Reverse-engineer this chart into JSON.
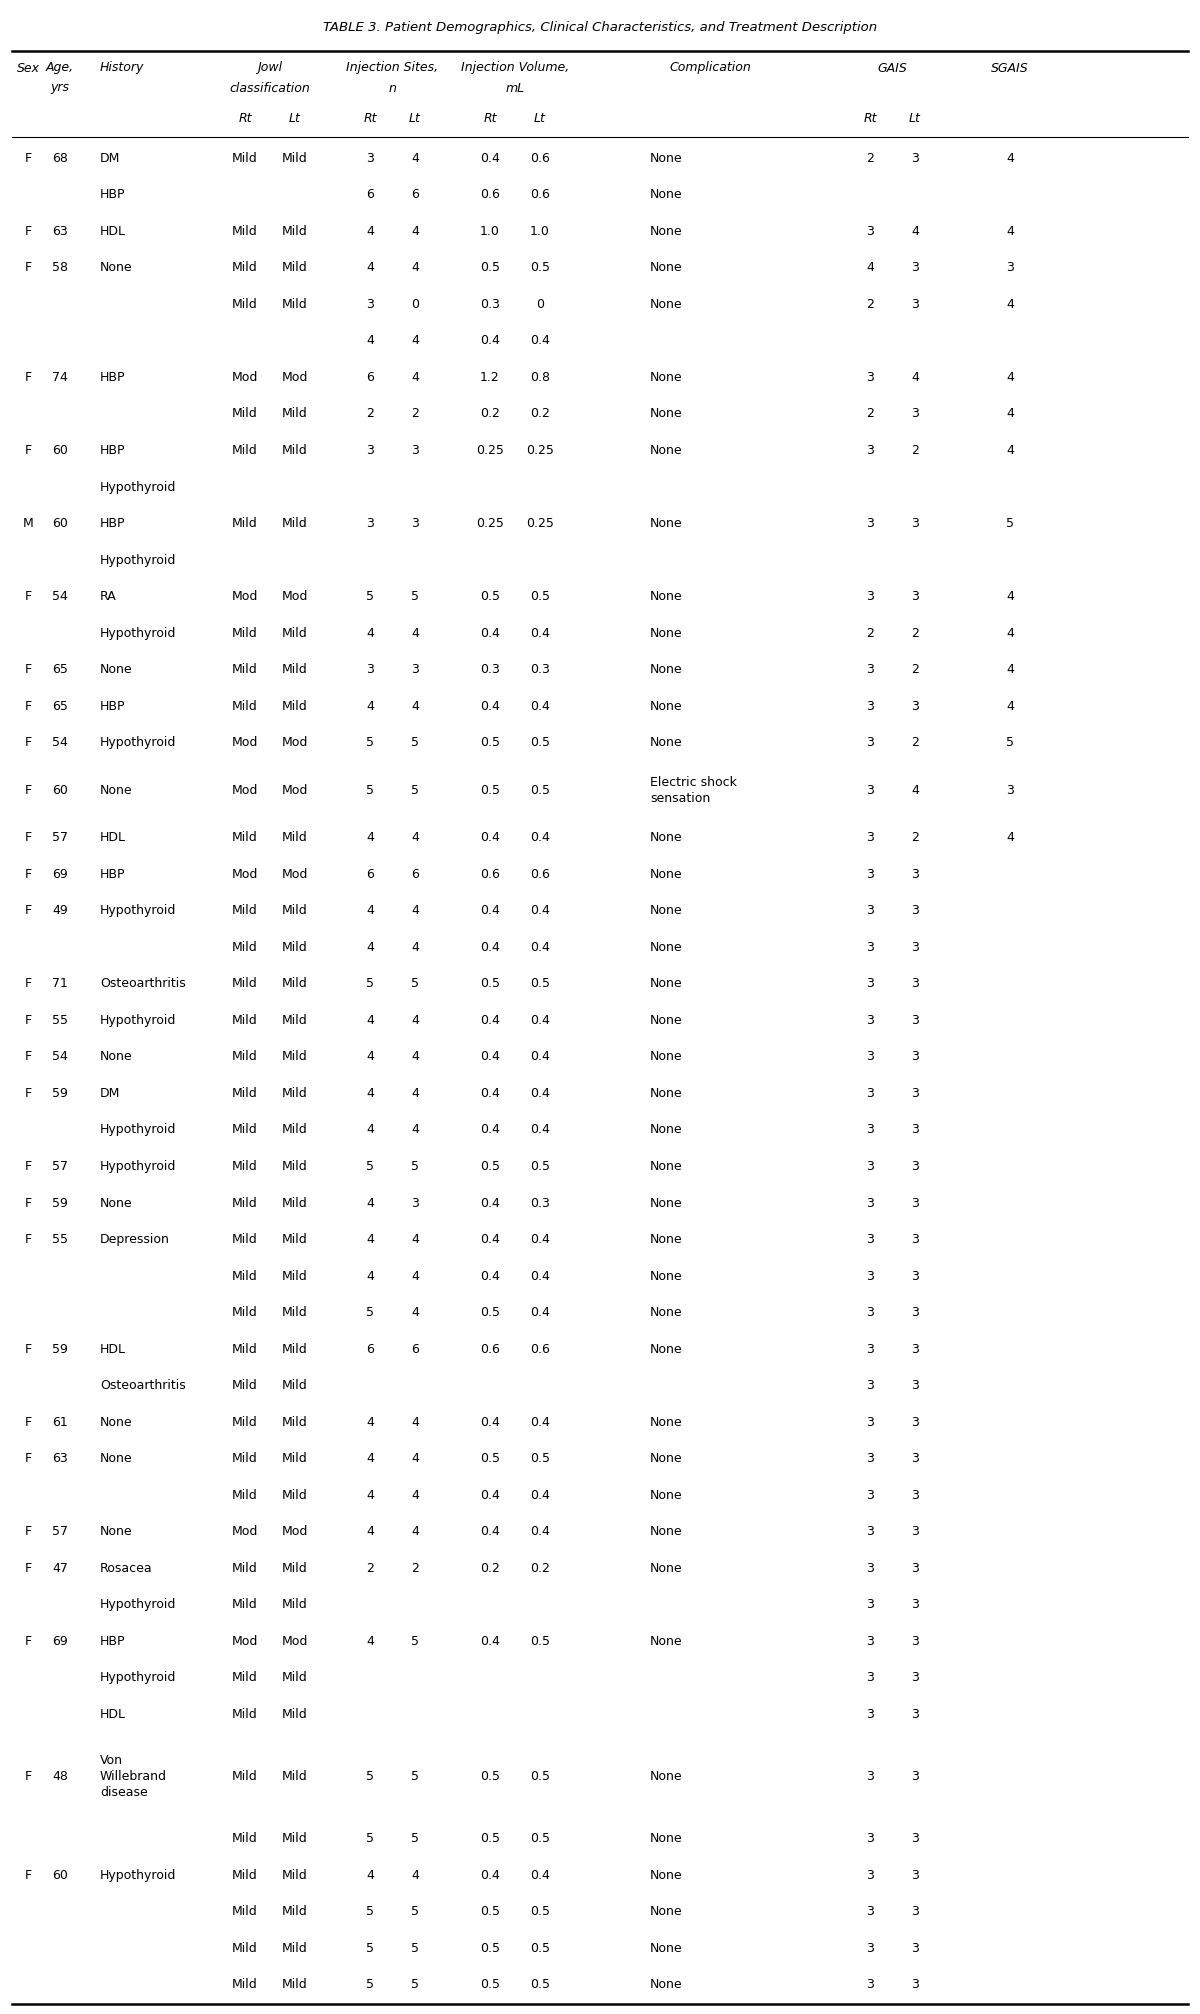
{
  "title": "TABLE 3. Patient Demographics, Clinical Characteristics, and Treatment Description",
  "bg_color": "#ffffff",
  "text_color": "#000000",
  "font_size": 9.0,
  "header_font_size": 9.0,
  "rows": [
    [
      "F",
      "68",
      "DM",
      "Mild",
      "Mild",
      "3",
      "4",
      "0.4",
      "0.6",
      "None",
      "2",
      "3",
      "4"
    ],
    [
      "",
      "",
      "HBP",
      "",
      "",
      "6",
      "6",
      "0.6",
      "0.6",
      "None",
      "",
      "",
      ""
    ],
    [
      "F",
      "63",
      "HDL",
      "Mild",
      "Mild",
      "4",
      "4",
      "1.0",
      "1.0",
      "None",
      "3",
      "4",
      "4"
    ],
    [
      "F",
      "58",
      "None",
      "Mild",
      "Mild",
      "4",
      "4",
      "0.5",
      "0.5",
      "None",
      "4",
      "3",
      "3"
    ],
    [
      "",
      "",
      "",
      "Mild",
      "Mild",
      "3",
      "0",
      "0.3",
      "0",
      "None",
      "2",
      "3",
      "4"
    ],
    [
      "",
      "",
      "",
      "",
      "",
      "4",
      "4",
      "0.4",
      "0.4",
      "",
      "",
      "",
      ""
    ],
    [
      "F",
      "74",
      "HBP",
      "Mod",
      "Mod",
      "6",
      "4",
      "1.2",
      "0.8",
      "None",
      "3",
      "4",
      "4"
    ],
    [
      "",
      "",
      "",
      "Mild",
      "Mild",
      "2",
      "2",
      "0.2",
      "0.2",
      "None",
      "2",
      "3",
      "4"
    ],
    [
      "F",
      "60",
      "HBP",
      "Mild",
      "Mild",
      "3",
      "3",
      "0.25",
      "0.25",
      "None",
      "3",
      "2",
      "4"
    ],
    [
      "",
      "",
      "Hypothyroid",
      "",
      "",
      "",
      "",
      "",
      "",
      "",
      "",
      "",
      ""
    ],
    [
      "M",
      "60",
      "HBP",
      "Mild",
      "Mild",
      "3",
      "3",
      "0.25",
      "0.25",
      "None",
      "3",
      "3",
      "5"
    ],
    [
      "",
      "",
      "Hypothyroid",
      "",
      "",
      "",
      "",
      "",
      "",
      "",
      "",
      "",
      ""
    ],
    [
      "F",
      "54",
      "RA",
      "Mod",
      "Mod",
      "5",
      "5",
      "0.5",
      "0.5",
      "None",
      "3",
      "3",
      "4"
    ],
    [
      "",
      "",
      "Hypothyroid",
      "Mild",
      "Mild",
      "4",
      "4",
      "0.4",
      "0.4",
      "None",
      "2",
      "2",
      "4"
    ],
    [
      "F",
      "65",
      "None",
      "Mild",
      "Mild",
      "3",
      "3",
      "0.3",
      "0.3",
      "None",
      "3",
      "2",
      "4"
    ],
    [
      "F",
      "65",
      "HBP",
      "Mild",
      "Mild",
      "4",
      "4",
      "0.4",
      "0.4",
      "None",
      "3",
      "3",
      "4"
    ],
    [
      "F",
      "54",
      "Hypothyroid",
      "Mod",
      "Mod",
      "5",
      "5",
      "0.5",
      "0.5",
      "None",
      "3",
      "2",
      "5"
    ],
    [
      "F",
      "60",
      "None",
      "Mod",
      "Mod",
      "5",
      "5",
      "0.5",
      "0.5",
      "Electric shock\nsensation",
      "3",
      "4",
      "3"
    ],
    [
      "F",
      "57",
      "HDL",
      "Mild",
      "Mild",
      "4",
      "4",
      "0.4",
      "0.4",
      "None",
      "3",
      "2",
      "4"
    ],
    [
      "F",
      "69",
      "HBP",
      "Mod",
      "Mod",
      "6",
      "6",
      "0.6",
      "0.6",
      "None",
      "3",
      "3",
      ""
    ],
    [
      "F",
      "49",
      "Hypothyroid",
      "Mild",
      "Mild",
      "4",
      "4",
      "0.4",
      "0.4",
      "None",
      "3",
      "3",
      ""
    ],
    [
      "",
      "",
      "",
      "Mild",
      "Mild",
      "4",
      "4",
      "0.4",
      "0.4",
      "None",
      "3",
      "3",
      ""
    ],
    [
      "F",
      "71",
      "Osteoarthritis",
      "Mild",
      "Mild",
      "5",
      "5",
      "0.5",
      "0.5",
      "None",
      "3",
      "3",
      ""
    ],
    [
      "F",
      "55",
      "Hypothyroid",
      "Mild",
      "Mild",
      "4",
      "4",
      "0.4",
      "0.4",
      "None",
      "3",
      "3",
      ""
    ],
    [
      "F",
      "54",
      "None",
      "Mild",
      "Mild",
      "4",
      "4",
      "0.4",
      "0.4",
      "None",
      "3",
      "3",
      ""
    ],
    [
      "F",
      "59",
      "DM",
      "Mild",
      "Mild",
      "4",
      "4",
      "0.4",
      "0.4",
      "None",
      "3",
      "3",
      ""
    ],
    [
      "",
      "",
      "Hypothyroid",
      "Mild",
      "Mild",
      "4",
      "4",
      "0.4",
      "0.4",
      "None",
      "3",
      "3",
      ""
    ],
    [
      "F",
      "57",
      "Hypothyroid",
      "Mild",
      "Mild",
      "5",
      "5",
      "0.5",
      "0.5",
      "None",
      "3",
      "3",
      ""
    ],
    [
      "F",
      "59",
      "None",
      "Mild",
      "Mild",
      "4",
      "3",
      "0.4",
      "0.3",
      "None",
      "3",
      "3",
      ""
    ],
    [
      "F",
      "55",
      "Depression",
      "Mild",
      "Mild",
      "4",
      "4",
      "0.4",
      "0.4",
      "None",
      "3",
      "3",
      ""
    ],
    [
      "",
      "",
      "",
      "Mild",
      "Mild",
      "4",
      "4",
      "0.4",
      "0.4",
      "None",
      "3",
      "3",
      ""
    ],
    [
      "",
      "",
      "",
      "Mild",
      "Mild",
      "5",
      "4",
      "0.5",
      "0.4",
      "None",
      "3",
      "3",
      ""
    ],
    [
      "F",
      "59",
      "HDL",
      "Mild",
      "Mild",
      "6",
      "6",
      "0.6",
      "0.6",
      "None",
      "3",
      "3",
      ""
    ],
    [
      "",
      "",
      "Osteoarthritis",
      "Mild",
      "Mild",
      "",
      "",
      "",
      "",
      "",
      "3",
      "3",
      ""
    ],
    [
      "F",
      "61",
      "None",
      "Mild",
      "Mild",
      "4",
      "4",
      "0.4",
      "0.4",
      "None",
      "3",
      "3",
      ""
    ],
    [
      "F",
      "63",
      "None",
      "Mild",
      "Mild",
      "4",
      "4",
      "0.5",
      "0.5",
      "None",
      "3",
      "3",
      ""
    ],
    [
      "",
      "",
      "",
      "Mild",
      "Mild",
      "4",
      "4",
      "0.4",
      "0.4",
      "None",
      "3",
      "3",
      ""
    ],
    [
      "F",
      "57",
      "None",
      "Mod",
      "Mod",
      "4",
      "4",
      "0.4",
      "0.4",
      "None",
      "3",
      "3",
      ""
    ],
    [
      "F",
      "47",
      "Rosacea",
      "Mild",
      "Mild",
      "2",
      "2",
      "0.2",
      "0.2",
      "None",
      "3",
      "3",
      ""
    ],
    [
      "",
      "",
      "Hypothyroid",
      "Mild",
      "Mild",
      "",
      "",
      "",
      "",
      "",
      "3",
      "3",
      ""
    ],
    [
      "F",
      "69",
      "HBP",
      "Mod",
      "Mod",
      "4",
      "5",
      "0.4",
      "0.5",
      "None",
      "3",
      "3",
      ""
    ],
    [
      "",
      "",
      "Hypothyroid",
      "Mild",
      "Mild",
      "",
      "",
      "",
      "",
      "",
      "3",
      "3",
      ""
    ],
    [
      "",
      "",
      "HDL",
      "Mild",
      "Mild",
      "",
      "",
      "",
      "",
      "",
      "3",
      "3",
      ""
    ],
    [
      "F",
      "48",
      "Von\nWillebrand\ndisease",
      "Mild",
      "Mild",
      "5",
      "5",
      "0.5",
      "0.5",
      "None",
      "3",
      "3",
      ""
    ],
    [
      "",
      "",
      "",
      "Mild",
      "Mild",
      "5",
      "5",
      "0.5",
      "0.5",
      "None",
      "3",
      "3",
      ""
    ],
    [
      "F",
      "60",
      "Hypothyroid",
      "Mild",
      "Mild",
      "4",
      "4",
      "0.4",
      "0.4",
      "None",
      "3",
      "3",
      ""
    ],
    [
      "",
      "",
      "",
      "Mild",
      "Mild",
      "5",
      "5",
      "0.5",
      "0.5",
      "None",
      "3",
      "3",
      ""
    ],
    [
      "",
      "",
      "",
      "Mild",
      "Mild",
      "5",
      "5",
      "0.5",
      "0.5",
      "None",
      "3",
      "3",
      ""
    ],
    [
      "",
      "",
      "",
      "Mild",
      "Mild",
      "5",
      "5",
      "0.5",
      "0.5",
      "None",
      "3",
      "3",
      ""
    ]
  ]
}
